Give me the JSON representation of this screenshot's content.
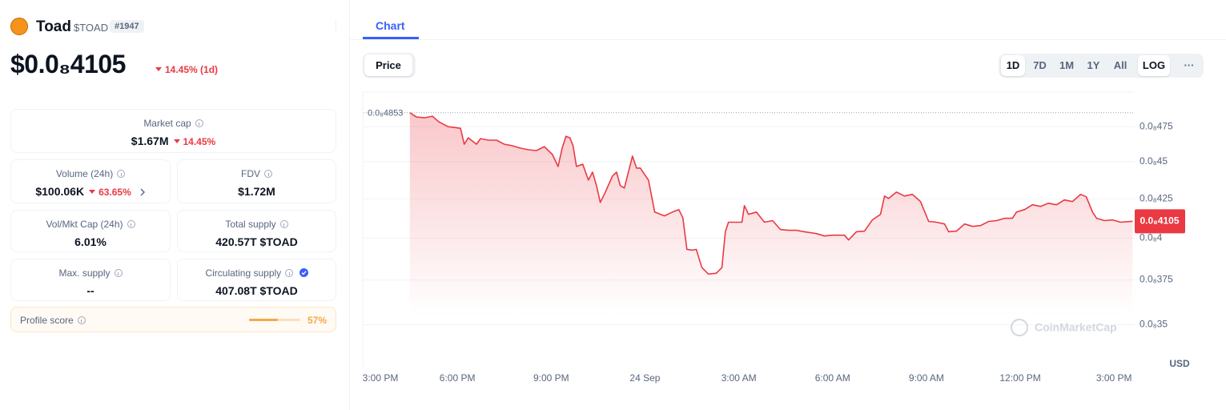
{
  "token": {
    "name": "Toad",
    "symbol": "$TOAD",
    "rank": "#1947",
    "price": "$0.0₈4105",
    "change": "14.45% (1d)"
  },
  "stats": {
    "market_cap": {
      "label": "Market cap",
      "value": "$1.67M",
      "change": "14.45%"
    },
    "volume": {
      "label": "Volume (24h)",
      "value": "$100.06K",
      "change": "63.65%"
    },
    "fdv": {
      "label": "FDV",
      "value": "$1.72M"
    },
    "vol_mkt_cap": {
      "label": "Vol/Mkt Cap (24h)",
      "value": "6.01%"
    },
    "total_supply": {
      "label": "Total supply",
      "value": "420.57T $TOAD"
    },
    "max_supply": {
      "label": "Max. supply",
      "value": "--"
    },
    "circulating_supply": {
      "label": "Circulating supply",
      "value": "407.08T $TOAD"
    },
    "profile_score": {
      "label": "Profile score",
      "score": {
        "value": 57,
        "label": "57%"
      }
    }
  },
  "chart_panel": {
    "tab": "Chart",
    "metric": "Price",
    "ranges": [
      "1D",
      "7D",
      "1M",
      "1Y",
      "All"
    ],
    "active_range": "1D",
    "scale_button": "LOG",
    "more": "···"
  },
  "chart_data": {
    "type": "line",
    "color": "#ea3943",
    "x": [
      1.48,
      1.69,
      1.94,
      2.2,
      2.41,
      2.71,
      3.1,
      3.22,
      3.35,
      3.61,
      3.74,
      3.99,
      4.25,
      4.5,
      4.76,
      5.02,
      5.27,
      5.53,
      5.78,
      6.04,
      6.22,
      6.35,
      6.47,
      6.6,
      6.7,
      6.81,
      7.01,
      7.19,
      7.32,
      7.45,
      7.57,
      7.7,
      7.96,
      8.09,
      8.21,
      8.34,
      8.6,
      8.73,
      8.85,
      9.11,
      9.31,
      9.62,
      9.88,
      10.08,
      10.21,
      10.34,
      10.52,
      10.64,
      10.82,
      11.03,
      11.28,
      11.46,
      11.57,
      11.67,
      11.98,
      12.1,
      12.18,
      12.31,
      12.56,
      12.82,
      13.08,
      13.33,
      13.59,
      13.84,
      14.1,
      14.48,
      14.74,
      14.99,
      15.38,
      15.51,
      15.76,
      16.02,
      16.27,
      16.53,
      16.66,
      16.79,
      17.04,
      17.3,
      17.55,
      17.81,
      18.07,
      18.32,
      18.58,
      18.71,
      18.96,
      19.22,
      19.47,
      19.73,
      19.99,
      20.24,
      20.5,
      20.75,
      20.88,
      21.14,
      21.39,
      21.65,
      21.9,
      22.16,
      22.41,
      22.67,
      22.93,
      23.11,
      23.31,
      23.44,
      23.7,
      23.95,
      24.21,
      24.59
    ],
    "values": [
      4.853e-10,
      4.821e-10,
      4.815e-10,
      4.827e-10,
      4.785e-10,
      4.75e-10,
      4.738e-10,
      4.623e-10,
      4.669e-10,
      4.623e-10,
      4.663e-10,
      4.652e-10,
      4.652e-10,
      4.623e-10,
      4.612e-10,
      4.595e-10,
      4.584e-10,
      4.578e-10,
      4.606e-10,
      4.55e-10,
      4.467e-10,
      4.595e-10,
      4.68e-10,
      4.669e-10,
      4.612e-10,
      4.467e-10,
      4.483e-10,
      4.374e-10,
      4.428e-10,
      4.337e-10,
      4.226e-10,
      4.279e-10,
      4.401e-10,
      4.428e-10,
      4.337e-10,
      4.321e-10,
      4.539e-10,
      4.456e-10,
      4.456e-10,
      4.374e-10,
      4.164e-10,
      4.139e-10,
      4.164e-10,
      4.18e-10,
      4.128e-10,
      3.931e-10,
      3.926e-10,
      3.931e-10,
      3.822e-10,
      3.784e-10,
      3.789e-10,
      3.822e-10,
      4.039e-10,
      4.099e-10,
      4.099e-10,
      4.099e-10,
      4.205e-10,
      4.149e-10,
      4.164e-10,
      4.099e-10,
      4.109e-10,
      4.053e-10,
      4.048e-10,
      4.048e-10,
      4.039e-10,
      4.028e-10,
      4.013e-10,
      4.018e-10,
      4.018e-10,
      3.988e-10,
      4.039e-10,
      4.043e-10,
      4.114e-10,
      4.149e-10,
      4.268e-10,
      4.252e-10,
      4.294e-10,
      4.268e-10,
      4.279e-10,
      4.232e-10,
      4.104e-10,
      4.099e-10,
      4.088e-10,
      4.039e-10,
      4.043e-10,
      4.088e-10,
      4.073e-10,
      4.078e-10,
      4.104e-10,
      4.109e-10,
      4.124e-10,
      4.124e-10,
      4.164e-10,
      4.18e-10,
      4.211e-10,
      4.2e-10,
      4.221e-10,
      4.211e-10,
      4.242e-10,
      4.232e-10,
      4.279e-10,
      4.263e-10,
      4.164e-10,
      4.124e-10,
      4.109e-10,
      4.114e-10,
      4.099e-10,
      4.105e-10
    ],
    "xlim": [
      0,
      24.66
    ],
    "xticks": [
      {
        "value": 0,
        "label": "3:00 PM"
      },
      {
        "value": 3,
        "label": "6:00 PM"
      },
      {
        "value": 6,
        "label": "9:00 PM"
      },
      {
        "value": 9,
        "label": "24 Sep"
      },
      {
        "value": 12,
        "label": "3:00 AM"
      },
      {
        "value": 15,
        "label": "6:00 AM"
      },
      {
        "value": 18,
        "label": "9:00 AM"
      },
      {
        "value": 21,
        "label": "12:00 PM"
      },
      {
        "value": 24,
        "label": "3:00 PM"
      }
    ],
    "ylim": [
      3.28e-10,
      5.01e-10
    ],
    "yscale": "log",
    "yticks": [
      {
        "value": 3.5e-10,
        "label": "0.0₈35"
      },
      {
        "value": 3.75e-10,
        "label": "0.0₈375"
      },
      {
        "value": 4e-10,
        "label": "0.0₈4"
      },
      {
        "value": 4.25e-10,
        "label": "0.0₈425"
      },
      {
        "value": 4.5e-10,
        "label": "0.0₈45"
      },
      {
        "value": 4.75e-10,
        "label": "0.0₈475"
      }
    ],
    "grid": true,
    "high": {
      "value": 4.853e-10,
      "label": "0.0₈4853"
    },
    "last": {
      "value": 4.105e-10,
      "label": "0.0₈4105"
    },
    "currency": "USD",
    "watermark": "CoinMarketCap"
  }
}
